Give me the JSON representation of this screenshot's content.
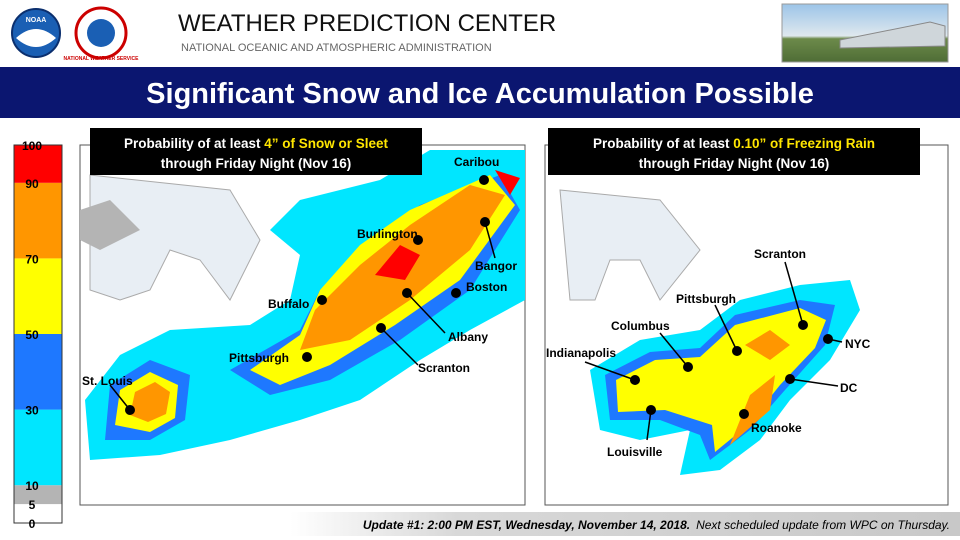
{
  "header": {
    "title": "WEATHER PREDICTION CENTER",
    "subtitle": "NATIONAL OCEANIC AND ATMOSPHERIC ADMINISTRATION",
    "logo_left": "NOAA",
    "logo_right": "NATIONAL WEATHER SERVICE"
  },
  "banner": "Significant Snow and Ice Accumulation Possible",
  "legend": {
    "stops": [
      0,
      5,
      10,
      30,
      50,
      70,
      90,
      100
    ],
    "colors": [
      "#ffffff",
      "#b4b4b4",
      "#00e6ff",
      "#1e78ff",
      "#ffff00",
      "#ff9600",
      "#ff0000"
    ]
  },
  "maps": [
    {
      "title": {
        "prefix": "Probability of at least ",
        "highlight": "4” of Snow or Sleet",
        "line2": "through Friday Night (Nov 16)"
      },
      "cities": [
        "Caribou",
        "Bangor",
        "Burlington",
        "Boston",
        "Buffalo",
        "Albany",
        "Scranton",
        "Pittsburgh",
        "St. Louis"
      ]
    },
    {
      "title": {
        "prefix": "Probability of at least ",
        "highlight": "0.10” of Freezing Rain",
        "line2": "through Friday Night (Nov 16)"
      },
      "cities": [
        "Scranton",
        "Pittsburgh",
        "Columbus",
        "Indianapolis",
        "Louisville",
        "NYC",
        "DC",
        "Roanoke"
      ]
    }
  ],
  "footer": {
    "update": "Update #1: 2:00 PM EST, Wednesday, November 14, 2018.",
    "next": "Next scheduled update from WPC on Thursday."
  }
}
